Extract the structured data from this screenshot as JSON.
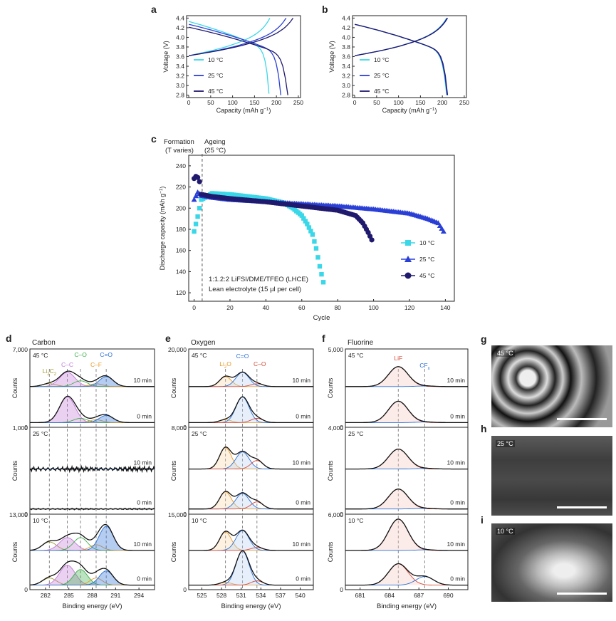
{
  "panels": {
    "a": "a",
    "b": "b",
    "c": "c",
    "d": "d",
    "e": "e",
    "f": "f",
    "g": "g",
    "h": "h",
    "i": "i"
  },
  "ab": {
    "ylabel": "Voltage (V)",
    "xlabel_main": "Capacity (mAh g",
    "xlabel_sup": "−1",
    "xlabel_end": ")",
    "yticks": [
      "2.8",
      "3.0",
      "3.2",
      "3.4",
      "3.6",
      "3.8",
      "4.0",
      "4.2",
      "4.4"
    ],
    "xticks": [
      "0",
      "50",
      "100",
      "150",
      "200",
      "250"
    ],
    "legend": [
      "10 °C",
      "25 °C",
      "45 °C"
    ]
  },
  "c": {
    "formation": "Formation",
    "t_varies": "(T varies)",
    "ageing": "Ageing",
    "ageing_t": "(25 °C)",
    "ylabel": "Discharge capacity (mAh g",
    "ylabel_sup": "−1",
    "ylabel_end": ")",
    "xlabel": "Cycle",
    "yticks": [
      "120",
      "140",
      "160",
      "180",
      "200",
      "220",
      "240"
    ],
    "xticks": [
      "0",
      "20",
      "40",
      "60",
      "80",
      "100",
      "120",
      "140"
    ],
    "note1": "1:1.2:2 LiFSI/DME/TFEO (LHCE)",
    "note2": "Lean electrolyte (15 µl per cell)",
    "legend": [
      "10 °C",
      "25 °C",
      "45 °C"
    ]
  },
  "xps": {
    "counts": "Counts",
    "xlabel": "Binding energy (eV)",
    "rows": [
      "45 °C",
      "25 °C",
      "10 °C"
    ],
    "times": [
      "10 min",
      "0 min"
    ],
    "d": {
      "title": "Carbon",
      "ymax": [
        "7,000",
        "1,000",
        "13,000"
      ],
      "xticks": [
        "282",
        "285",
        "288",
        "291",
        "294"
      ],
      "peaks": [
        {
          "main": "Li",
          "sub": "2",
          "main2": "C",
          "sub2": "2"
        },
        {
          "main": "C–C"
        },
        {
          "main": "C–O"
        },
        {
          "main": "C–F"
        },
        {
          "main": "C=O"
        }
      ]
    },
    "e": {
      "title": "Oxygen",
      "ymax": [
        "20,000",
        "8,000",
        "15,000"
      ],
      "xticks": [
        "525",
        "528",
        "531",
        "534",
        "537",
        "540"
      ],
      "peaks": [
        {
          "main": "Li",
          "sub": "2",
          "main2": "O"
        },
        {
          "main": "C=O"
        },
        {
          "main": "C–O"
        }
      ]
    },
    "f": {
      "title": "Fluorine",
      "ymax": [
        "5,000",
        "4,000",
        "6,000"
      ],
      "xticks": [
        "681",
        "684",
        "687",
        "690"
      ],
      "peaks": [
        {
          "main": "LiF"
        },
        {
          "main": "CF",
          "sub": "x"
        }
      ]
    }
  },
  "sem": {
    "labels": [
      "45 °C",
      "25 °C",
      "10 °C"
    ]
  },
  "colors": {
    "c10": "#3ad7e8",
    "c25": "#2a3fd6",
    "c45": "#201a6e",
    "li2c2": "#a39a2a",
    "cc": "#c27ad6",
    "co": "#3cae4a",
    "cf": "#e89a2a",
    "ceq": "#2a6fd6",
    "red": "#d64a3a",
    "lif_fill": "#f3c9c3"
  },
  "chart_data": [
    {
      "type": "line",
      "title": "a",
      "xlabel": "Capacity (mAh g−1)",
      "ylabel": "Voltage (V)",
      "xlim": [
        -5,
        255
      ],
      "ylim": [
        2.75,
        4.45
      ],
      "series": [
        {
          "name": "10 °C",
          "charge_end_capacity": 185,
          "discharge_end_capacity": 183
        },
        {
          "name": "25 °C",
          "charge_end_capacity": 222,
          "discharge_end_capacity": 210
        },
        {
          "name": "45 °C",
          "charge_end_capacity": 238,
          "discharge_end_capacity": 226
        }
      ]
    },
    {
      "type": "line",
      "title": "b",
      "xlabel": "Capacity (mAh g−1)",
      "ylabel": "Voltage (V)",
      "xlim": [
        -5,
        255
      ],
      "ylim": [
        2.75,
        4.45
      ],
      "series": [
        {
          "name": "10 °C",
          "charge_end_capacity": 210,
          "discharge_end_capacity": 210
        },
        {
          "name": "25 °C",
          "charge_end_capacity": 211,
          "discharge_end_capacity": 211
        },
        {
          "name": "45 °C",
          "charge_end_capacity": 212,
          "discharge_end_capacity": 212
        }
      ]
    },
    {
      "type": "scatter",
      "title": "c",
      "xlabel": "Cycle",
      "ylabel": "Discharge capacity (mAh g−1)",
      "xlim": [
        -3,
        145
      ],
      "ylim": [
        112,
        250
      ],
      "series": [
        {
          "name": "10 °C",
          "x": [
            0,
            1,
            2,
            3,
            4,
            10,
            20,
            30,
            40,
            50,
            55,
            60,
            63,
            66,
            68,
            70,
            72
          ],
          "y": [
            178,
            185,
            192,
            200,
            208,
            214,
            213,
            211,
            209,
            205,
            200,
            193,
            185,
            175,
            162,
            145,
            130
          ]
        },
        {
          "name": "25 °C",
          "x": [
            0,
            2,
            4,
            10,
            20,
            40,
            60,
            80,
            100,
            120,
            130,
            136,
            139
          ],
          "y": [
            208,
            215,
            212,
            210,
            208,
            206,
            204,
            202,
            199,
            195,
            190,
            186,
            178
          ]
        },
        {
          "name": "45 °C",
          "x": [
            0,
            1,
            2,
            3,
            4,
            10,
            20,
            40,
            60,
            80,
            90,
            94,
            97,
            99
          ],
          "y": [
            228,
            230,
            229,
            225,
            213,
            211,
            209,
            206,
            202,
            198,
            193,
            186,
            177,
            170
          ]
        }
      ]
    },
    {
      "type": "line",
      "title": "d Carbon",
      "xlim": [
        280,
        296
      ],
      "xlabel": "Binding energy (eV)",
      "peak_positions": {
        "Li2C2": 282.5,
        "C–C": 284.8,
        "C–O": 286.5,
        "C–F": 288.5,
        "C=O": 289.8
      }
    },
    {
      "type": "line",
      "title": "e Oxygen",
      "xlim": [
        523,
        542
      ],
      "xlabel": "Binding energy (eV)",
      "peak_positions": {
        "Li2O": 528.6,
        "C=O": 531.2,
        "C–O": 533.4
      }
    },
    {
      "type": "line",
      "title": "f Fluorine",
      "xlim": [
        679.5,
        692
      ],
      "xlabel": "Binding energy (eV)",
      "peak_positions": {
        "LiF": 684.9,
        "CFx": 687.6
      }
    }
  ]
}
